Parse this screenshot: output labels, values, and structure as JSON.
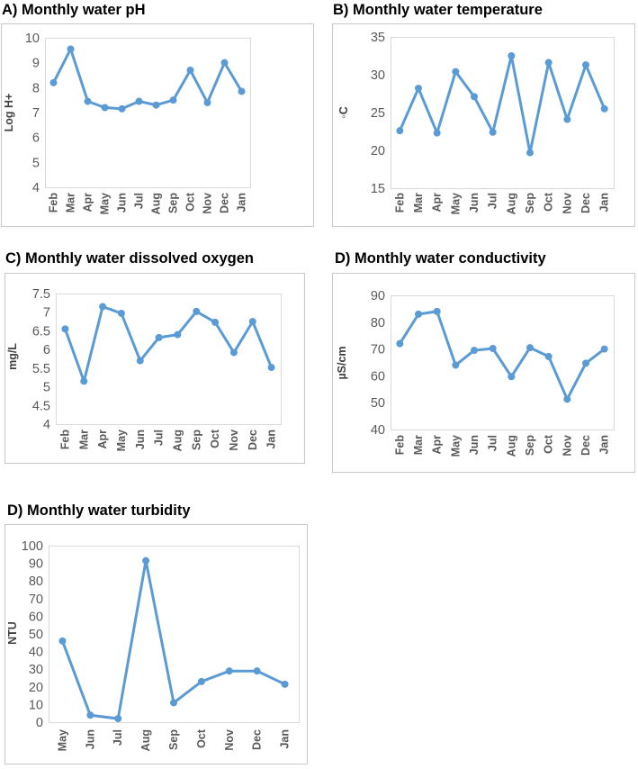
{
  "chart_data": [
    {
      "type": "line",
      "title": "A) Monthly water pH",
      "ylabel": "Log H+",
      "xlabel": "",
      "categories": [
        "Feb",
        "Mar",
        "Apr",
        "May",
        "Jun",
        "Jul",
        "Aug",
        "Sep",
        "Oct",
        "Nov",
        "Dec",
        "Jan"
      ],
      "values": [
        8.2,
        9.55,
        7.45,
        7.2,
        7.15,
        7.45,
        7.3,
        7.5,
        8.7,
        7.4,
        9.0,
        7.85
      ],
      "ylim": [
        4,
        10
      ],
      "yticks": [
        "4",
        "5",
        "6",
        "7",
        "8",
        "9",
        "10"
      ],
      "grid": false
    },
    {
      "type": "line",
      "title": "B) Monthly water temperature",
      "ylabel": "◦C",
      "xlabel": "",
      "categories": [
        "Feb",
        "Mar",
        "Apr",
        "May",
        "Jun",
        "Jul",
        "Aug",
        "Sep",
        "Oct",
        "Nov",
        "Dec",
        "Jan"
      ],
      "values": [
        22.6,
        28.2,
        22.3,
        30.4,
        27.1,
        22.4,
        32.5,
        19.7,
        31.6,
        24.1,
        31.3,
        25.5
      ],
      "ylim": [
        15,
        35
      ],
      "yticks": [
        "15",
        "20",
        "25",
        "30",
        "35"
      ],
      "grid": false
    },
    {
      "type": "line",
      "title": "C) Monthly water dissolved oxygen",
      "ylabel": "mg/L",
      "xlabel": "",
      "categories": [
        "Feb",
        "Mar",
        "Apr",
        "May",
        "Jun",
        "Jul",
        "Aug",
        "Sep",
        "Oct",
        "Nov",
        "Dec",
        "Jan"
      ],
      "values": [
        6.55,
        5.15,
        7.15,
        6.97,
        5.7,
        6.32,
        6.4,
        7.02,
        6.73,
        5.92,
        6.75,
        5.52
      ],
      "ylim": [
        4,
        7.5
      ],
      "yticks": [
        "4",
        "4.5",
        "5",
        "5.5",
        "6",
        "6.5",
        "7",
        "7.5"
      ],
      "grid": false
    },
    {
      "type": "line",
      "title": "D) Monthly water conductivity",
      "ylabel": "µS/cm",
      "xlabel": "",
      "categories": [
        "Feb",
        "Mar",
        "Apr",
        "May",
        "Jun",
        "Jul",
        "Aug",
        "Sep",
        "Oct",
        "Nov",
        "Dec",
        "Jan"
      ],
      "values": [
        72,
        83,
        84,
        64,
        69.5,
        70.2,
        59.7,
        70.5,
        67.2,
        51.3,
        64.7,
        70
      ],
      "ylim": [
        40,
        90
      ],
      "yticks": [
        "40",
        "50",
        "60",
        "70",
        "80",
        "90"
      ],
      "grid": false
    },
    {
      "type": "line",
      "title": "D) Monthly water turbidity",
      "ylabel": "NTU",
      "xlabel": "",
      "categories": [
        "May",
        "Jun",
        "Jul",
        "Aug",
        "Sep",
        "Oct",
        "Nov",
        "Dec",
        "Jan"
      ],
      "values": [
        46,
        4,
        2,
        91.5,
        11,
        23,
        29,
        29,
        21.5
      ],
      "ylim": [
        0,
        100
      ],
      "yticks": [
        "0",
        "10",
        "20",
        "30",
        "40",
        "50",
        "60",
        "70",
        "80",
        "90",
        "100"
      ],
      "grid": false
    }
  ]
}
